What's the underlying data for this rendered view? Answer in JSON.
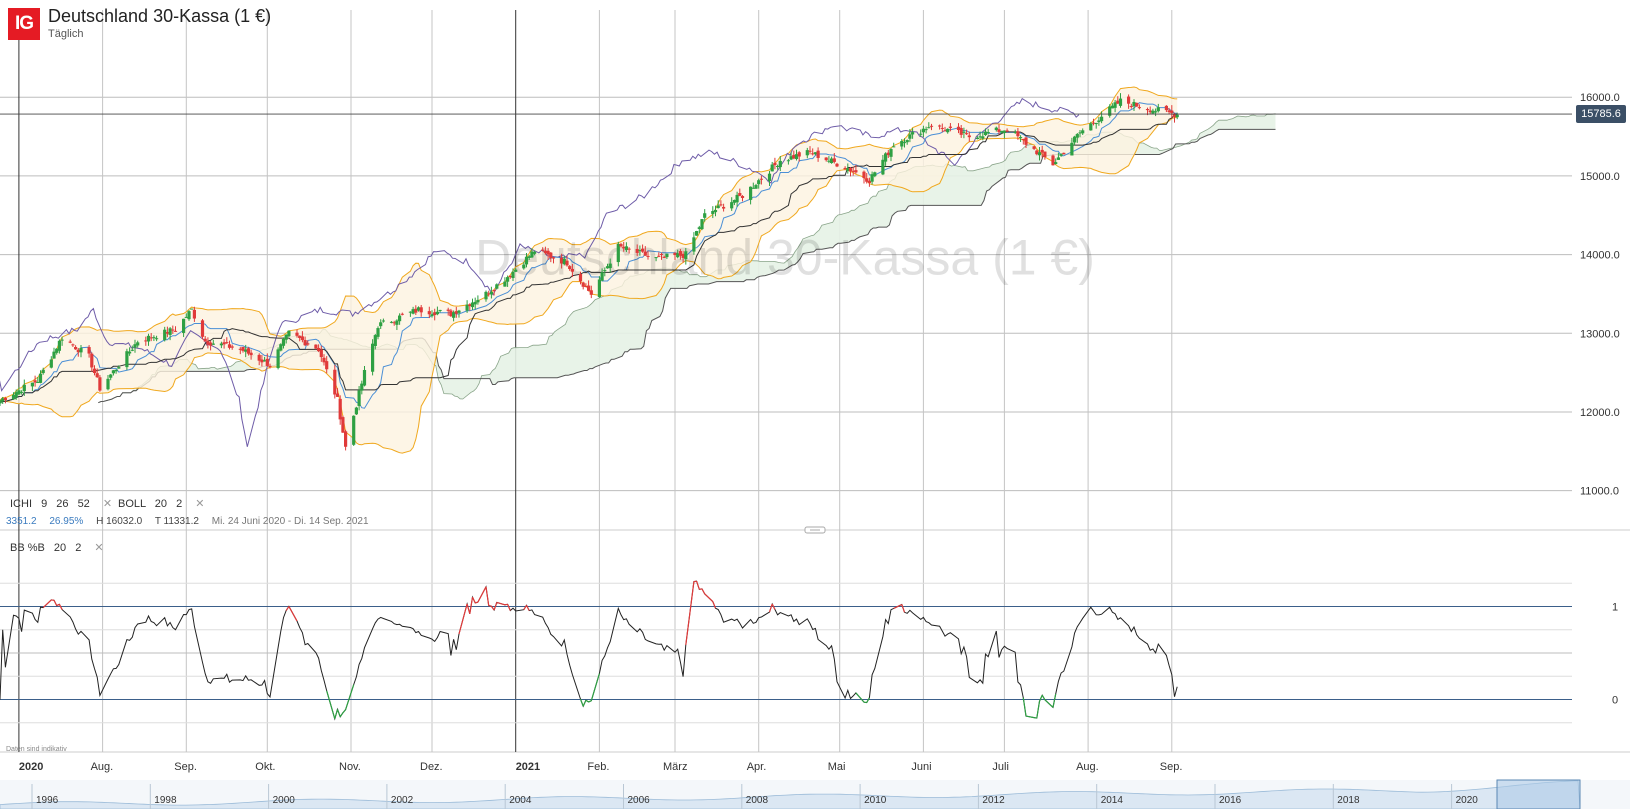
{
  "header": {
    "logo_text": "IG",
    "title": "Deutschland 30-Kassa (1 €)",
    "subtitle": "Täglich"
  },
  "watermark": "Deutschland 30-Kassa (1 €)",
  "indicators": {
    "ichi": {
      "label": "ICHI",
      "params": [
        "9",
        "26",
        "52"
      ],
      "close": "✕"
    },
    "boll": {
      "label": "BOLL",
      "params": [
        "20",
        "2"
      ],
      "close": "✕"
    },
    "bbpb": {
      "label": "BB %B",
      "params": [
        "20",
        "2"
      ],
      "close": "✕"
    }
  },
  "stats": {
    "change": "3351.2",
    "change_pct": "26.95%",
    "high": "H 16032.0",
    "low": "T 11331.2",
    "range": "Mi. 24 Juni 2020 - Di. 14 Sep. 2021"
  },
  "disclaimer": "Daten sind indikativ",
  "current_price": "15785.6",
  "colors": {
    "up": "#2ea043",
    "down": "#e03a3a",
    "boll": "#f0a81e",
    "ichi_purple": "#6e5ca8",
    "ichi_blue": "#4a8fd6",
    "ichi_black": "#333333",
    "cloud": "#e6f2e6",
    "boll_fill": "#fdf3e0",
    "pb_line": "#222222",
    "pb_up": "#e03a3a",
    "pb_down": "#2ea043",
    "ref_line": "#3b5f8a",
    "accent": "#e51b24"
  },
  "chart_data": [
    {
      "type": "candlestick",
      "title": "Deutschland 30-Kassa (1 €)",
      "y_axis": {
        "min": 10500,
        "max": 16600,
        "ticks": [
          "11000.0",
          "12000.0",
          "13000.0",
          "14000.0",
          "15000.0",
          "16000.0"
        ]
      },
      "x_ticks": [
        {
          "label": "2020",
          "date": "2020-07-01",
          "bold": true
        },
        {
          "label": "Aug.",
          "date": "2020-08-01"
        },
        {
          "label": "Sep.",
          "date": "2020-09-01"
        },
        {
          "label": "Okt.",
          "date": "2020-10-01"
        },
        {
          "label": "Nov.",
          "date": "2020-11-01"
        },
        {
          "label": "Dez.",
          "date": "2020-12-01"
        },
        {
          "label": "2021",
          "date": "2021-01-01",
          "bold": true
        },
        {
          "label": "Feb.",
          "date": "2021-02-01"
        },
        {
          "label": "März",
          "date": "2021-03-01"
        },
        {
          "label": "Apr.",
          "date": "2021-04-01"
        },
        {
          "label": "Mai",
          "date": "2021-05-01"
        },
        {
          "label": "Juni",
          "date": "2021-06-01"
        },
        {
          "label": "Juli",
          "date": "2021-07-01"
        },
        {
          "label": "Aug.",
          "date": "2021-08-01"
        },
        {
          "label": "Sep.",
          "date": "2021-09-01"
        }
      ],
      "date_range": [
        "2020-06-24",
        "2021-09-14"
      ],
      "period_high": 16032.0,
      "period_low": 11331.2,
      "last": 15785.6,
      "close_series": [
        {
          "date": "2020-06-24",
          "close": 12150
        },
        {
          "date": "2020-07-08",
          "close": 12400
        },
        {
          "date": "2020-07-17",
          "close": 12950
        },
        {
          "date": "2020-07-27",
          "close": 12700
        },
        {
          "date": "2020-07-31",
          "close": 12300
        },
        {
          "date": "2020-08-14",
          "close": 12900
        },
        {
          "date": "2020-08-28",
          "close": 13050
        },
        {
          "date": "2020-09-03",
          "close": 13300
        },
        {
          "date": "2020-09-08",
          "close": 12900
        },
        {
          "date": "2020-09-21",
          "close": 12800
        },
        {
          "date": "2020-10-02",
          "close": 12600
        },
        {
          "date": "2020-10-09",
          "close": 13000
        },
        {
          "date": "2020-10-20",
          "close": 12800
        },
        {
          "date": "2020-10-27",
          "close": 12150
        },
        {
          "date": "2020-10-30",
          "close": 11550
        },
        {
          "date": "2020-11-06",
          "close": 12500
        },
        {
          "date": "2020-11-11",
          "close": 13100
        },
        {
          "date": "2020-11-26",
          "close": 13300
        },
        {
          "date": "2020-12-08",
          "close": 13250
        },
        {
          "date": "2020-12-21",
          "close": 13500
        },
        {
          "date": "2020-12-30",
          "close": 13750
        },
        {
          "date": "2021-01-08",
          "close": 14050
        },
        {
          "date": "2021-01-20",
          "close": 13900
        },
        {
          "date": "2021-01-29",
          "close": 13500
        },
        {
          "date": "2021-02-08",
          "close": 14100
        },
        {
          "date": "2021-02-22",
          "close": 13950
        },
        {
          "date": "2021-03-05",
          "close": 14000
        },
        {
          "date": "2021-03-12",
          "close": 14500
        },
        {
          "date": "2021-03-26",
          "close": 14750
        },
        {
          "date": "2021-04-09",
          "close": 15200
        },
        {
          "date": "2021-04-20",
          "close": 15300
        },
        {
          "date": "2021-05-04",
          "close": 15100
        },
        {
          "date": "2021-05-12",
          "close": 14950
        },
        {
          "date": "2021-05-21",
          "close": 15400
        },
        {
          "date": "2021-06-04",
          "close": 15650
        },
        {
          "date": "2021-06-18",
          "close": 15500
        },
        {
          "date": "2021-07-02",
          "close": 15600
        },
        {
          "date": "2021-07-19",
          "close": 15150
        },
        {
          "date": "2021-07-29",
          "close": 15550
        },
        {
          "date": "2021-08-13",
          "close": 15950
        },
        {
          "date": "2021-08-24",
          "close": 15850
        },
        {
          "date": "2021-09-03",
          "close": 15780
        }
      ]
    },
    {
      "type": "line",
      "title": "BB %B",
      "y_axis": {
        "ticks": [
          "0",
          "1"
        ],
        "min": -0.5,
        "max": 1.5
      },
      "note": "Bollinger %B oscillator; red above 1, green below 0"
    },
    {
      "type": "area",
      "title": "navigator",
      "x_ticks": [
        "1996",
        "1998",
        "2000",
        "2002",
        "2004",
        "2006",
        "2008",
        "2010",
        "2012",
        "2014",
        "2016",
        "2018",
        "2020"
      ]
    }
  ]
}
